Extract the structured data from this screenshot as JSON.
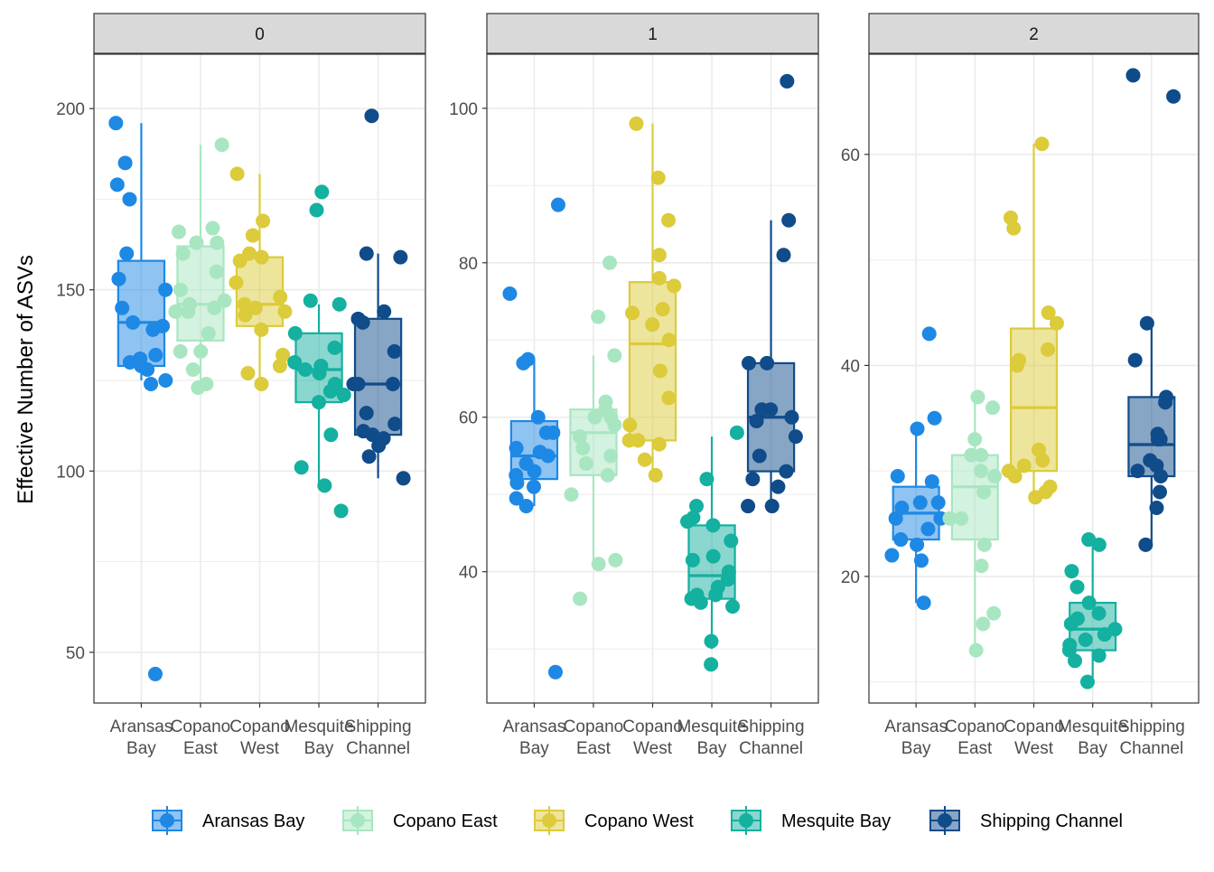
{
  "chart_data": {
    "type": "boxplot",
    "y_axis_label": "Effective Number of ASVs",
    "colors": {
      "Aransas Bay": "#1e88e5",
      "Copano East": "#a8e6c1",
      "Copano West": "#dccb3a",
      "Mesquite Bay": "#14b0a0",
      "Shipping Channel": "#104b8a"
    },
    "legend": {
      "position": "bottom",
      "entries": [
        "Aransas Bay",
        "Copano East",
        "Copano West",
        "Mesquite Bay",
        "Shipping Channel"
      ]
    },
    "panels": [
      {
        "strip": "0",
        "ylim": [
          36,
          215
        ],
        "yticks": [
          50,
          100,
          150,
          200
        ],
        "categories": [
          {
            "name": "Aransas Bay",
            "label": [
              "Aransas",
              "Bay"
            ],
            "stats": {
              "min": 125,
              "q1": 129,
              "median": 141,
              "q3": 158,
              "max": 196
            },
            "points": [
              196,
              185,
              179,
              175,
              160,
              153,
              150,
              145,
              141,
              140,
              139,
              132,
              131,
              130,
              129,
              128,
              125,
              124,
              44
            ]
          },
          {
            "name": "Copano East",
            "label": [
              "Copano",
              "East"
            ],
            "stats": {
              "min": 123,
              "q1": 136,
              "median": 146,
              "q3": 162,
              "max": 190
            },
            "points": [
              190,
              167,
              166,
              163,
              163,
              160,
              155,
              150,
              147,
              146,
              145,
              144,
              144,
              138,
              133,
              133,
              128,
              124,
              123
            ]
          },
          {
            "name": "Copano West",
            "label": [
              "Copano",
              "West"
            ],
            "stats": {
              "min": 124,
              "q1": 140,
              "median": 146,
              "q3": 159,
              "max": 182
            },
            "points": [
              182,
              169,
              165,
              160,
              159,
              158,
              152,
              148,
              146,
              145,
              144,
              143,
              139,
              132,
              129,
              127,
              124
            ]
          },
          {
            "name": "Mesquite Bay",
            "label": [
              "Mesquite",
              "Bay"
            ],
            "stats": {
              "min": 96,
              "q1": 119,
              "median": 128,
              "q3": 138,
              "max": 146
            },
            "points": [
              177,
              172,
              147,
              146,
              138,
              134,
              130,
              129,
              128,
              127,
              124,
              122,
              121,
              119,
              110,
              101,
              96,
              89
            ]
          },
          {
            "name": "Shipping Channel",
            "label": [
              "Shipping",
              "Channel"
            ],
            "stats": {
              "min": 98,
              "q1": 110,
              "median": 124,
              "q3": 142,
              "max": 160
            },
            "points": [
              198,
              160,
              159,
              144,
              142,
              141,
              133,
              124,
              124,
              124,
              116,
              113,
              111,
              110,
              109,
              107,
              104,
              98
            ]
          }
        ]
      },
      {
        "strip": "1",
        "ylim": [
          23,
          107
        ],
        "yticks": [
          40,
          60,
          80,
          100
        ],
        "categories": [
          {
            "name": "Aransas Bay",
            "label": [
              "Aransas",
              "Bay"
            ],
            "stats": {
              "min": 48.5,
              "q1": 52,
              "median": 55,
              "q3": 59.5,
              "max": 67.5
            },
            "points": [
              87.5,
              76,
              67.5,
              67,
              60,
              58,
              58,
              56,
              55.5,
              55,
              54,
              53,
              52.5,
              51.5,
              51,
              49.5,
              48.5,
              27
            ]
          },
          {
            "name": "Copano East",
            "label": [
              "Copano",
              "East"
            ],
            "stats": {
              "min": 41,
              "q1": 52.5,
              "median": 58,
              "q3": 61,
              "max": 68
            },
            "points": [
              80,
              73,
              68,
              62,
              61,
              60,
              60,
              59,
              57.5,
              56,
              55,
              54,
              52.5,
              50,
              41.5,
              41,
              36.5
            ]
          },
          {
            "name": "Copano West",
            "label": [
              "Copano",
              "West"
            ],
            "stats": {
              "min": 52,
              "q1": 57,
              "median": 69.5,
              "q3": 77.5,
              "max": 98
            },
            "points": [
              98,
              91,
              85.5,
              81,
              78,
              77,
              74,
              73.5,
              72,
              70,
              66,
              62.5,
              59,
              57,
              57,
              56.5,
              54.5,
              52.5
            ]
          },
          {
            "name": "Mesquite Bay",
            "label": [
              "Mesquite",
              "Bay"
            ],
            "stats": {
              "min": 30,
              "q1": 36.5,
              "median": 39.5,
              "q3": 46,
              "max": 57.5
            },
            "points": [
              58,
              52,
              48.5,
              47,
              46.5,
              46,
              44,
              42,
              41.5,
              40,
              39,
              38,
              37,
              37,
              36.5,
              36,
              35.5,
              31,
              28
            ]
          },
          {
            "name": "Shipping Channel",
            "label": [
              "Shipping",
              "Channel"
            ],
            "stats": {
              "min": 48.5,
              "q1": 53,
              "median": 60,
              "q3": 67,
              "max": 85.5
            },
            "points": [
              103.5,
              85.5,
              81,
              67,
              67,
              61,
              61,
              60,
              59.5,
              57.5,
              55,
              53,
              52,
              51,
              48.5,
              48.5
            ]
          }
        ]
      },
      {
        "strip": "2",
        "ylim": [
          8,
          69.5
        ],
        "yticks": [
          20,
          40,
          60
        ],
        "categories": [
          {
            "name": "Aransas Bay",
            "label": [
              "Aransas",
              "Bay"
            ],
            "stats": {
              "min": 17.5,
              "q1": 23.5,
              "median": 26,
              "q3": 28.5,
              "max": 34
            },
            "points": [
              43,
              35,
              34,
              29.5,
              29,
              27,
              27,
              26.5,
              25.5,
              25.5,
              24.5,
              23.5,
              23,
              22,
              21.5,
              17.5
            ]
          },
          {
            "name": "Copano East",
            "label": [
              "Copano",
              "East"
            ],
            "stats": {
              "min": 13,
              "q1": 23.5,
              "median": 28.5,
              "q3": 31.5,
              "max": 37
            },
            "points": [
              37,
              36,
              33,
              31.5,
              31.5,
              30,
              29.5,
              28,
              25.5,
              25.5,
              23,
              21,
              16.5,
              15.5,
              13
            ]
          },
          {
            "name": "Copano West",
            "label": [
              "Copano",
              "West"
            ],
            "stats": {
              "min": 27,
              "q1": 30,
              "median": 36,
              "q3": 43.5,
              "max": 61
            },
            "points": [
              61,
              54,
              53,
              45,
              44,
              41.5,
              40.5,
              40,
              32,
              31,
              30.5,
              30,
              29.5,
              28.5,
              28,
              27.5
            ]
          },
          {
            "name": "Mesquite Bay",
            "label": [
              "Mesquite",
              "Bay"
            ],
            "stats": {
              "min": 10,
              "q1": 13,
              "median": 15,
              "q3": 17.5,
              "max": 23
            },
            "points": [
              23.5,
              23,
              20.5,
              19,
              17.5,
              16.5,
              16,
              15.5,
              15,
              14.5,
              14,
              13.5,
              13,
              12.5,
              12,
              10
            ]
          },
          {
            "name": "Shipping Channel",
            "label": [
              "Shipping",
              "Channel"
            ],
            "stats": {
              "min": 23,
              "q1": 29.5,
              "median": 32.5,
              "q3": 37,
              "max": 44
            },
            "points": [
              67.5,
              65.5,
              44,
              40.5,
              37,
              36.5,
              33.5,
              33,
              33,
              31,
              30.5,
              30,
              29.5,
              28,
              26.5,
              23
            ]
          }
        ]
      }
    ]
  }
}
